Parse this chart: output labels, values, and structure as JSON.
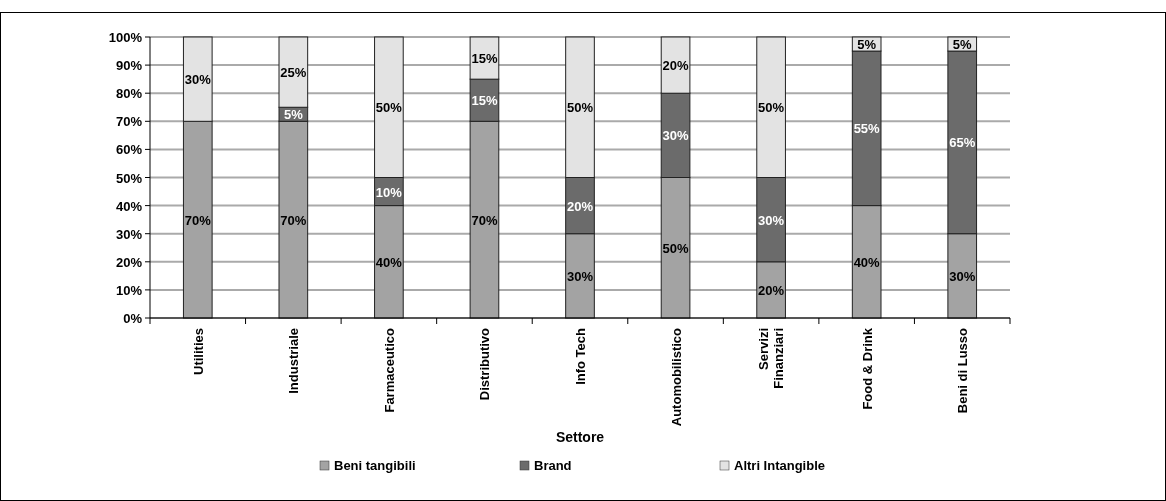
{
  "chart_data": {
    "type": "bar",
    "stacked": true,
    "xlabel": "Settore",
    "categories": [
      "Utilities",
      "Industriale",
      "Farmaceutico",
      "Distributivo",
      "Info Tech",
      "Automobilistico",
      "Servizi Finanziari",
      "Food & Drink",
      "Beni di Lusso"
    ],
    "series": [
      {
        "name": "Beni tangibili",
        "color": "#a3a3a3",
        "values": [
          70,
          70,
          40,
          70,
          30,
          50,
          20,
          40,
          30
        ],
        "value_labels": [
          "70%",
          "70%",
          "40%",
          "70%",
          "30%",
          "50%",
          "20%",
          "40%",
          "30%"
        ]
      },
      {
        "name": "Brand",
        "color": "#6b6b6b",
        "values": [
          0,
          5,
          10,
          15,
          20,
          30,
          30,
          55,
          65
        ],
        "value_labels": [
          null,
          "5%",
          "10%",
          "15%",
          "20%",
          "30%",
          "30%",
          "55%",
          "65%"
        ]
      },
      {
        "name": "Altri Intangible",
        "color": "#e3e3e3",
        "values": [
          30,
          25,
          50,
          15,
          50,
          20,
          50,
          5,
          5
        ],
        "value_labels": [
          "30%",
          "25%",
          "50%",
          "15%",
          "50%",
          "20%",
          "50%",
          "5%",
          "5%"
        ]
      }
    ],
    "ylim": [
      0,
      100
    ],
    "yticks": [
      {
        "value": 0,
        "label": "0%"
      },
      {
        "value": 10,
        "label": "10%"
      },
      {
        "value": 20,
        "label": "20%"
      },
      {
        "value": 30,
        "label": "30%"
      },
      {
        "value": 40,
        "label": "40%"
      },
      {
        "value": 50,
        "label": "50%"
      },
      {
        "value": 60,
        "label": "60%"
      },
      {
        "value": 70,
        "label": "70%"
      },
      {
        "value": 80,
        "label": "80%"
      },
      {
        "value": 90,
        "label": "90%"
      },
      {
        "value": 100,
        "label": "100%"
      }
    ],
    "grid": "y",
    "legend": "bottom"
  }
}
